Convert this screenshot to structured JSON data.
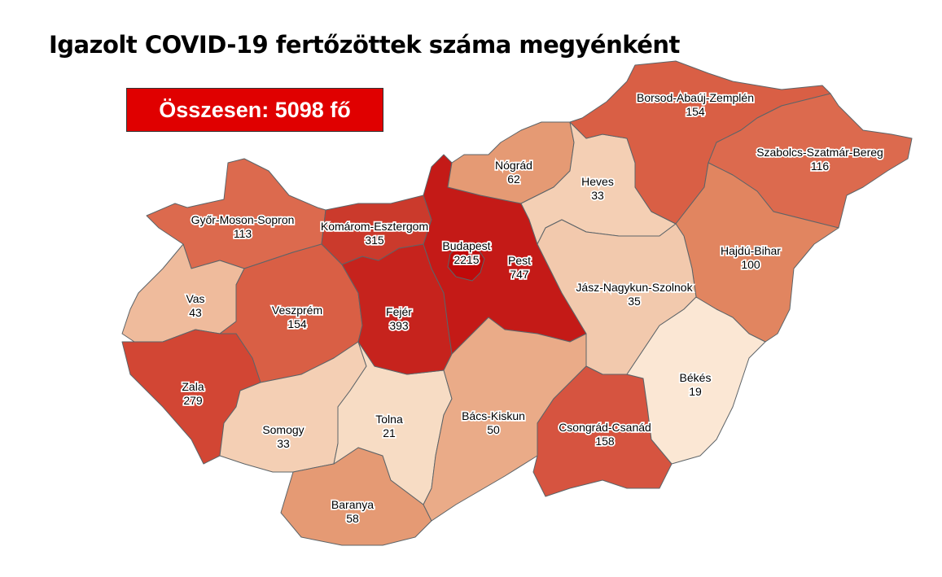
{
  "title": "Igazolt COVID-19 fertőzöttek száma megyénként",
  "total_label": "Összesen: 5098 fő",
  "counties": [
    {
      "id": "gyor",
      "name": "Győr-Moson-Sopron",
      "value": "113",
      "color": "#dc6a4e"
    },
    {
      "id": "vas",
      "name": "Vas",
      "value": "43",
      "color": "#efbb9c"
    },
    {
      "id": "veszprem",
      "name": "Veszprém",
      "value": "154",
      "color": "#d95f45"
    },
    {
      "id": "zala",
      "name": "Zala",
      "value": "279",
      "color": "#d24634"
    },
    {
      "id": "somogy",
      "name": "Somogy",
      "value": "33",
      "color": "#f4cfb4"
    },
    {
      "id": "baranya",
      "name": "Baranya",
      "value": "58",
      "color": "#e59a74"
    },
    {
      "id": "tolna",
      "name": "Tolna",
      "value": "21",
      "color": "#f7dcc4"
    },
    {
      "id": "fejer",
      "name": "Fejér",
      "value": "393",
      "color": "#c6231d"
    },
    {
      "id": "komarom",
      "name": "Komárom-Esztergom",
      "value": "315",
      "color": "#cb3a2c"
    },
    {
      "id": "pest",
      "name": "Pest",
      "value": "747",
      "color": "#c41a17"
    },
    {
      "id": "budapest",
      "name": "Budapest",
      "value": "2215",
      "color": "#c00a0a"
    },
    {
      "id": "nograd",
      "name": "Nógrád",
      "value": "62",
      "color": "#e59a74"
    },
    {
      "id": "heves",
      "name": "Heves",
      "value": "33",
      "color": "#f4cfb4"
    },
    {
      "id": "baz",
      "name": "Borsod-Abaúj-Zemplén",
      "value": "154",
      "color": "#d95f45"
    },
    {
      "id": "szabolcs",
      "name": "Szabolcs-Szatmár-Bereg",
      "value": "116",
      "color": "#dc6a4e"
    },
    {
      "id": "hajdu",
      "name": "Hajdú-Bihar",
      "value": "100",
      "color": "#e18560"
    },
    {
      "id": "jnsz",
      "name": "Jász-Nagykun-Szolnok",
      "value": "35",
      "color": "#f2c9ad"
    },
    {
      "id": "bacs",
      "name": "Bács-Kiskun",
      "value": "50",
      "color": "#eaab88"
    },
    {
      "id": "csongrad",
      "name": "Csongrád-Csanád",
      "value": "158",
      "color": "#d65440"
    },
    {
      "id": "bekes",
      "name": "Békés",
      "value": "19",
      "color": "#fbe7d4"
    }
  ]
}
